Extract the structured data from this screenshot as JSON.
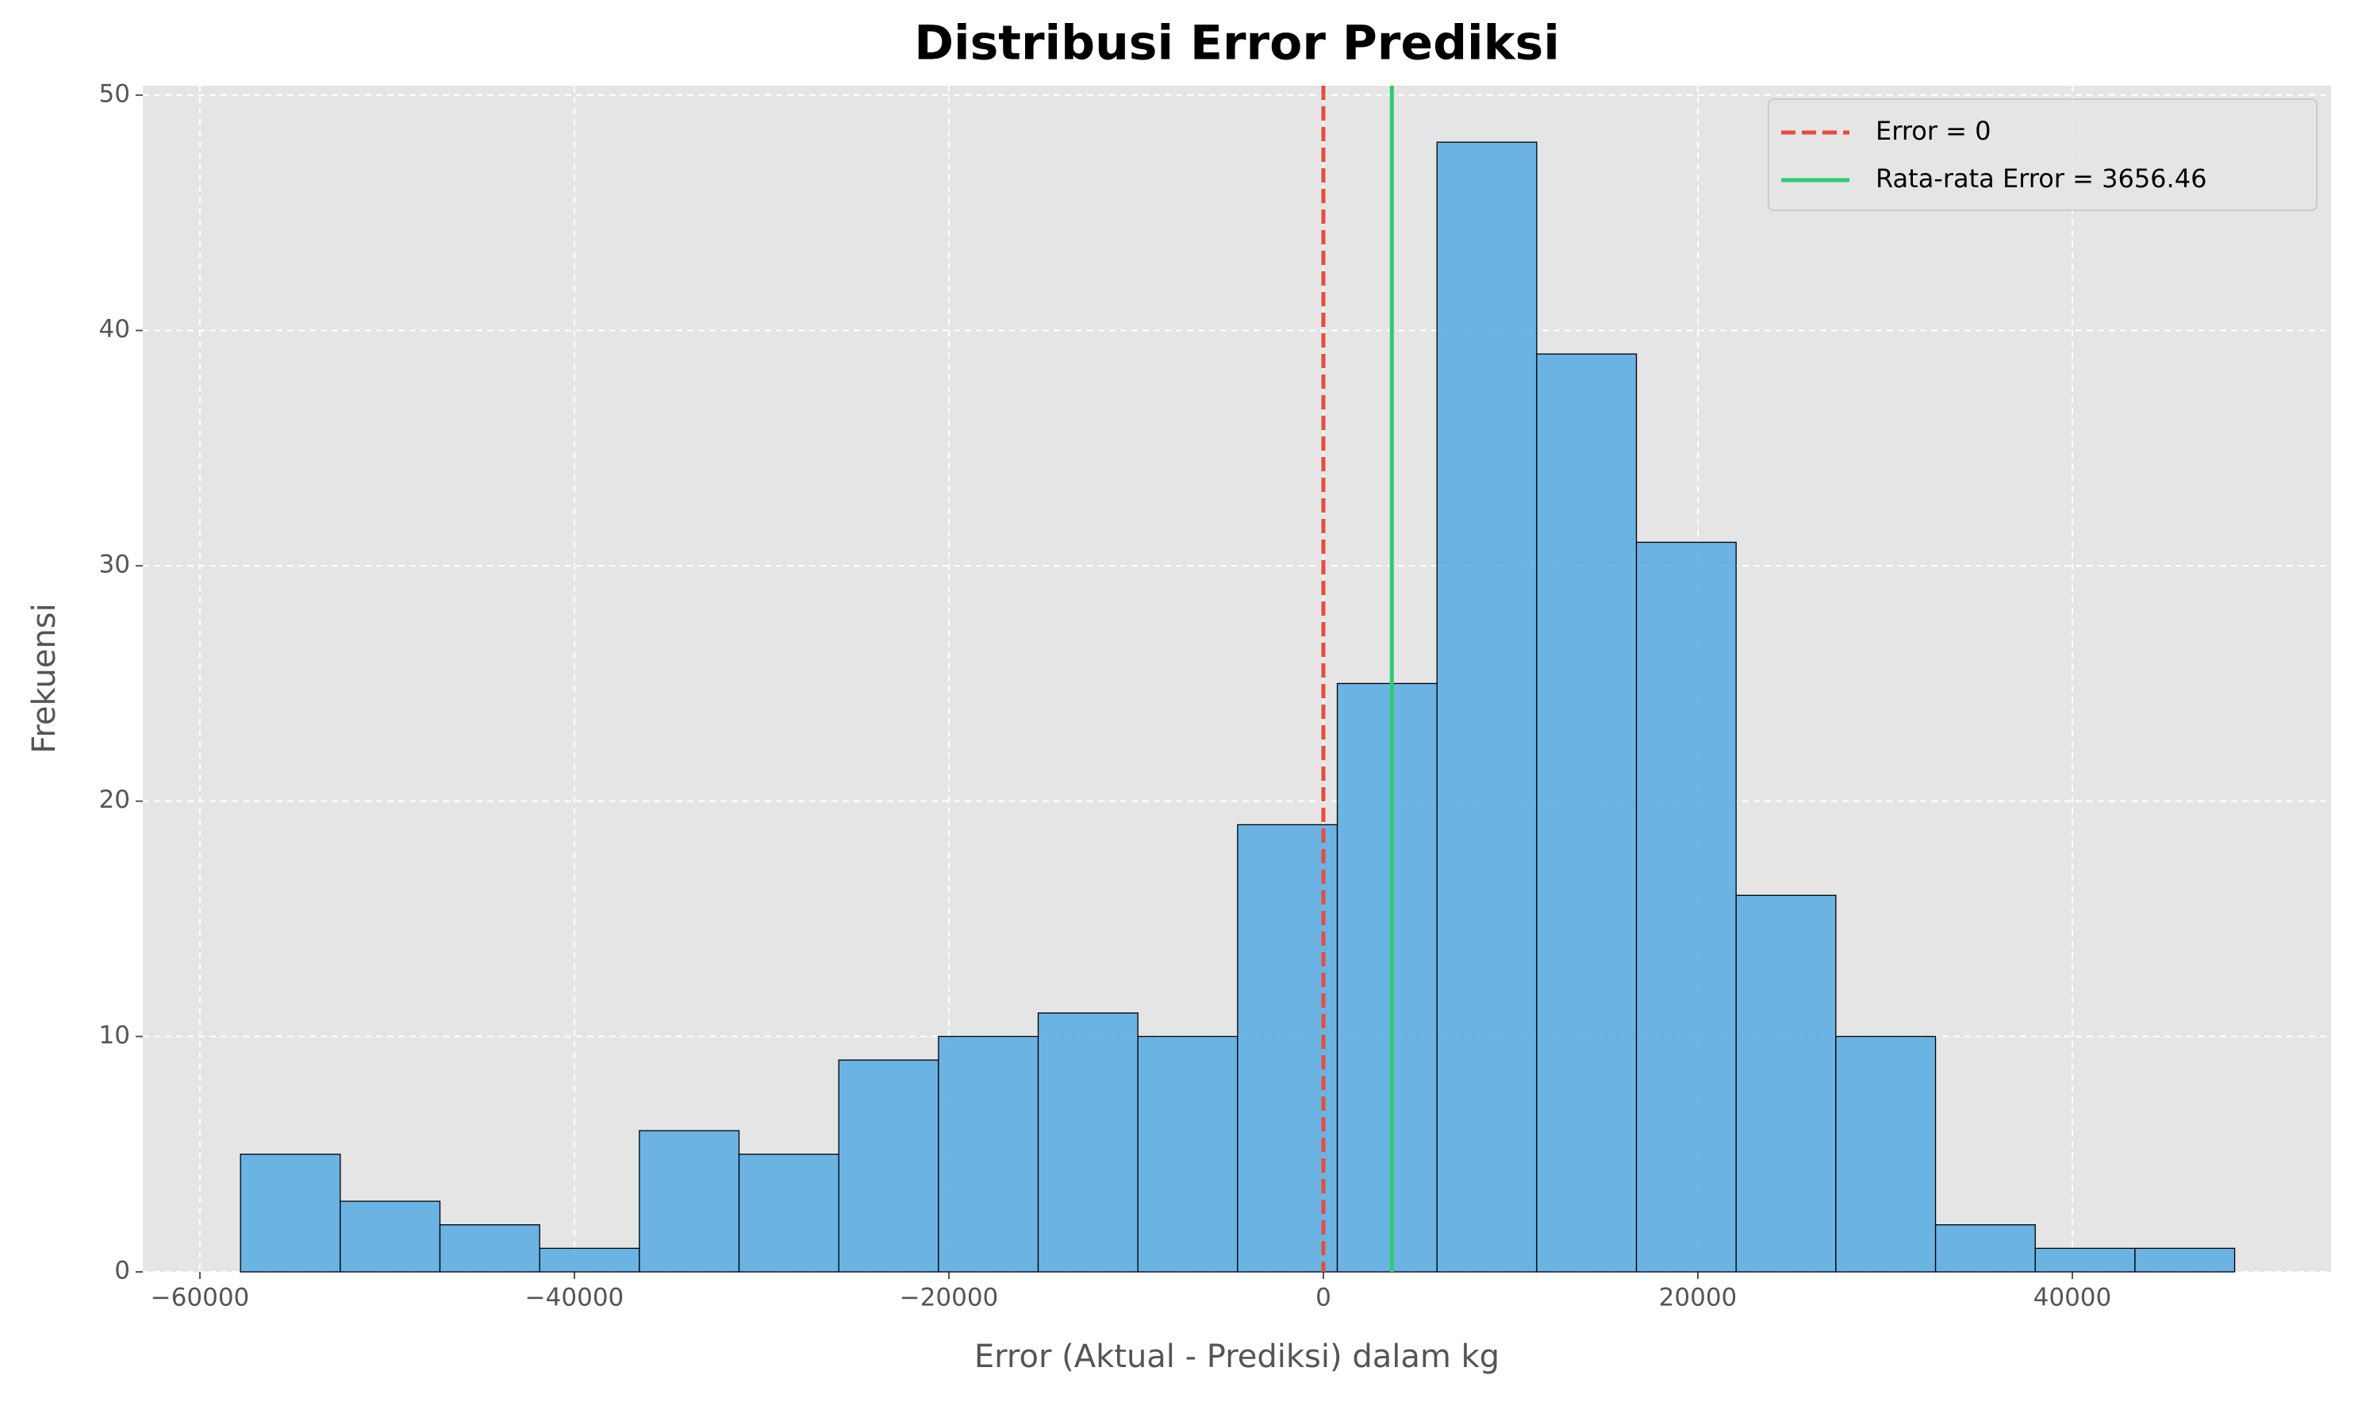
{
  "chart_data": {
    "type": "histogram",
    "title": "Distribusi Error Prediksi",
    "xlabel": "Error (Aktual - Prediksi) dalam kg",
    "ylabel": "Frekuensi",
    "bins": [
      -57831,
      -52506,
      -47181,
      -41856,
      -36531,
      -31206,
      -25881,
      -20556,
      -15231,
      -9906,
      -4581,
      744,
      6069,
      11394,
      16719,
      22044,
      27369,
      32694,
      38019,
      43344,
      48669
    ],
    "values": [
      5,
      3,
      2,
      1,
      6,
      5,
      9,
      10,
      11,
      10,
      19,
      25,
      48,
      39,
      31,
      16,
      10,
      2,
      1,
      1
    ],
    "color": "#5dade2",
    "edgecolor": "#000000",
    "xlim": [
      -63050,
      53815
    ],
    "ylim": [
      0,
      50.4
    ],
    "xticks": [
      {
        "value": -60000,
        "label": "−60000"
      },
      {
        "value": -40000,
        "label": "−40000"
      },
      {
        "value": -20000,
        "label": "−20000"
      },
      0,
      20000,
      40000
    ],
    "yticks": [
      0,
      10,
      20,
      30,
      40,
      50
    ],
    "grid": true,
    "legend": "upper right",
    "reference_lines": [
      {
        "name": "Error = 0",
        "x": 0,
        "color": "#e74c3c",
        "style": "dashed"
      },
      {
        "name": "Rata-rata Error = 3656.46",
        "x": 3656.46,
        "color": "#2ecc71",
        "style": "solid"
      }
    ]
  }
}
